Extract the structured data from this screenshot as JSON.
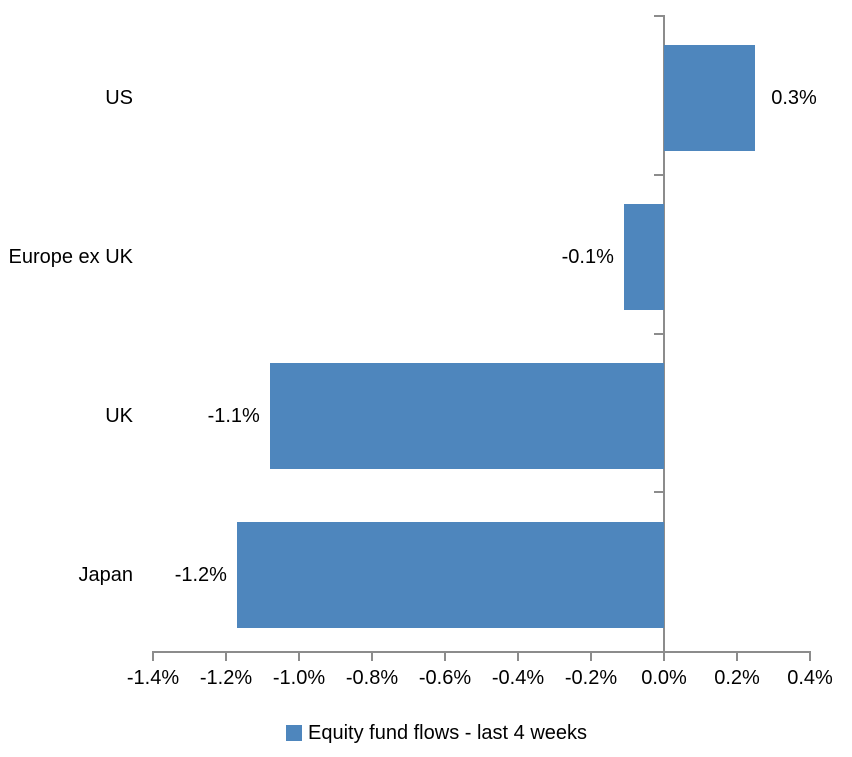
{
  "chart_data": {
    "type": "bar",
    "orientation": "horizontal",
    "title": "",
    "xlabel": "",
    "ylabel": "",
    "categories": [
      "US",
      "Europe ex UK",
      "UK",
      "Japan"
    ],
    "series": [
      {
        "name": "Equity fund flows - last 4 weeks",
        "values": [
          0.3,
          -0.1,
          -1.1,
          -1.2
        ],
        "values_precise_pct": [
          0.25,
          -0.11,
          -1.08,
          -1.17
        ],
        "data_labels": [
          "0.3%",
          "-0.1%",
          "-1.1%",
          "-1.2%"
        ]
      }
    ],
    "xlim": [
      -1.4,
      0.4
    ],
    "x_ticks": [
      -1.4,
      -1.2,
      -1.0,
      -0.8,
      -0.6,
      -0.4,
      -0.2,
      0.0,
      0.2,
      0.4
    ],
    "x_tick_labels": [
      "-1.4%",
      "-1.2%",
      "-1.0%",
      "-0.8%",
      "-0.6%",
      "-0.4%",
      "-0.2%",
      "0.0%",
      "0.2%",
      "0.4%"
    ],
    "grid": false,
    "legend_position": "bottom",
    "colors": {
      "bar": "#4E86BD",
      "axis": "#8C8C8C",
      "text": "#000000",
      "background": "#FFFFFF"
    }
  },
  "legend": {
    "label": "Equity fund flows - last 4 weeks",
    "marker": "square-icon",
    "marker_color": "#4E86BD"
  }
}
